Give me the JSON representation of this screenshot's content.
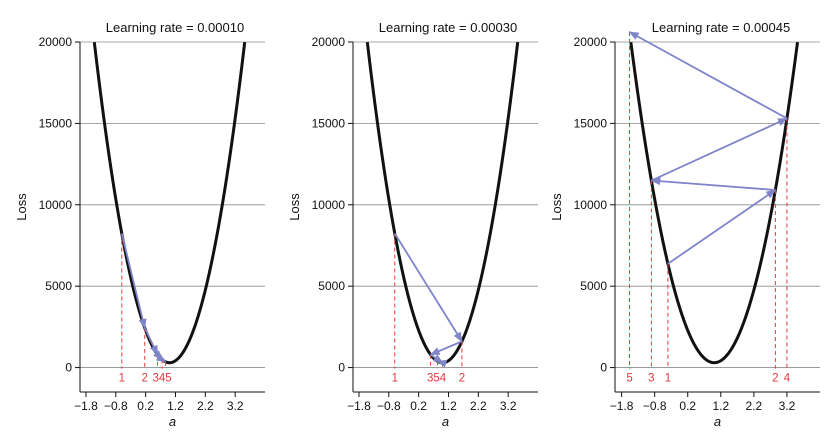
{
  "chart_data": [
    {
      "type": "line",
      "title": "Learning rate = 0.00010",
      "xlabel": "a",
      "ylabel": "Loss",
      "xlim": [
        -2.0,
        4.2
      ],
      "ylim": [
        -1500,
        20000
      ],
      "xticks": [
        -1.8,
        -0.8,
        0.2,
        1.2,
        2.2,
        3.2
      ],
      "xtick_labels": [
        "−1.8",
        "−0.8",
        "0.2",
        "1.2",
        "2.2",
        "3.2"
      ],
      "yticks": [
        0,
        5000,
        10000,
        15000,
        20000
      ],
      "ytick_labels": [
        "0",
        "5000",
        "10000",
        "15000",
        "20000"
      ],
      "grid": "horizontal",
      "curve": {
        "a_min": 1.0,
        "loss_min": 300,
        "curvature": 3100
      },
      "steps": [
        {
          "label": "1",
          "a": -0.6
        },
        {
          "label": "2",
          "a": 0.17
        },
        {
          "label": "3",
          "a": 0.6
        },
        {
          "label": "4",
          "a": 0.75
        },
        {
          "label": "5",
          "a": 0.87
        }
      ],
      "step_labels": [
        {
          "text": "1",
          "a": -0.6
        },
        {
          "text": "2",
          "a": 0.17
        },
        {
          "text": "345",
          "a": 0.75
        }
      ]
    },
    {
      "type": "line",
      "title": "Learning rate = 0.00030",
      "xlabel": "a",
      "ylabel": "Loss",
      "xlim": [
        -2.0,
        4.2
      ],
      "ylim": [
        -1500,
        20000
      ],
      "xticks": [
        -1.8,
        -0.8,
        0.2,
        1.2,
        2.2,
        3.2
      ],
      "xtick_labels": [
        "−1.8",
        "−0.8",
        "0.2",
        "1.2",
        "2.2",
        "3.2"
      ],
      "yticks": [
        0,
        5000,
        10000,
        15000,
        20000
      ],
      "ytick_labels": [
        "0",
        "5000",
        "10000",
        "15000",
        "20000"
      ],
      "grid": "horizontal",
      "curve": {
        "a_min": 1.0,
        "loss_min": 300,
        "curvature": 3100
      },
      "steps": [
        {
          "label": "1",
          "a": -0.6
        },
        {
          "label": "2",
          "a": 1.65
        },
        {
          "label": "3",
          "a": 0.6
        },
        {
          "label": "4",
          "a": 1.0
        },
        {
          "label": "5",
          "a": 0.83
        }
      ],
      "step_labels": [
        {
          "text": "1",
          "a": -0.6
        },
        {
          "text": "354",
          "a": 0.8
        },
        {
          "text": "2",
          "a": 1.65
        }
      ]
    },
    {
      "type": "line",
      "title": "Learning rate = 0.00045",
      "xlabel": "a",
      "ylabel": "Loss",
      "xlim": [
        -2.0,
        4.2
      ],
      "ylim": [
        -1500,
        20000
      ],
      "xticks": [
        -1.8,
        -0.8,
        0.2,
        1.2,
        2.2,
        3.2
      ],
      "xtick_labels": [
        "−1.8",
        "−0.8",
        "0.2",
        "1.2",
        "2.2",
        "3.2"
      ],
      "yticks": [
        0,
        5000,
        10000,
        15000,
        20000
      ],
      "ytick_labels": [
        "0",
        "5000",
        "10000",
        "15000",
        "20000"
      ],
      "grid": "horizontal",
      "curve": {
        "a_min": 1.0,
        "loss_min": 300,
        "curvature": 3100
      },
      "steps": [
        {
          "label": "1",
          "a": -0.4
        },
        {
          "label": "2",
          "a": 2.85
        },
        {
          "label": "3",
          "a": -0.9
        },
        {
          "label": "4",
          "a": 3.2
        },
        {
          "label": "5",
          "a": -1.56
        }
      ],
      "step_labels": [
        {
          "text": "1",
          "a": -0.4
        },
        {
          "text": "2",
          "a": 2.85
        },
        {
          "text": "3",
          "a": -0.9
        },
        {
          "text": "4",
          "a": 3.2
        },
        {
          "text": "5",
          "a": -1.56
        }
      ]
    }
  ],
  "colors": {
    "curve": "#111111",
    "arrow": "#7f85c9",
    "step_line": "#e23a3a",
    "grid": "#8c8c8c",
    "axis": "#111111"
  }
}
